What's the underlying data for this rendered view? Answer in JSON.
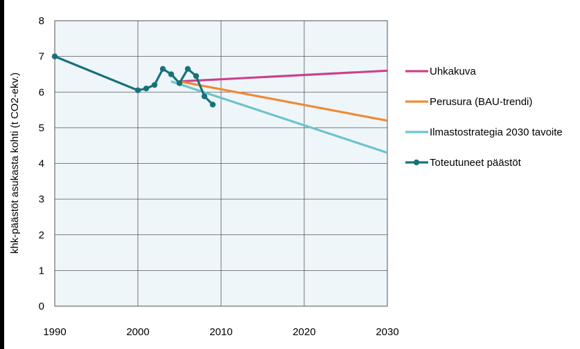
{
  "chart_data": {
    "type": "line",
    "ylabel": "khk-päästöt asukasta kohti (t CO2-ekv.)",
    "xlim": [
      1990,
      2030
    ],
    "ylim": [
      0,
      8
    ],
    "xticks": [
      "1990",
      "2000",
      "2010",
      "2020",
      "2030"
    ],
    "yticks": [
      "0",
      "1",
      "2",
      "3",
      "4",
      "5",
      "6",
      "7",
      "8"
    ],
    "grid": true,
    "legend_position": "right",
    "series": [
      {
        "name": "Uhkakuva",
        "color": "#cc3f8c",
        "markers": false,
        "x": [
          2005,
          2030
        ],
        "y": [
          6.3,
          6.6
        ]
      },
      {
        "name": "Perusura (BAU-trendi)",
        "color": "#f08a34",
        "markers": false,
        "x": [
          2005,
          2030
        ],
        "y": [
          6.3,
          5.2
        ]
      },
      {
        "name": "Ilmastostrategia 2030 tavoite",
        "color": "#6cc4c8",
        "markers": false,
        "x": [
          2004,
          2030
        ],
        "y": [
          6.3,
          4.3
        ]
      },
      {
        "name": "Toteutuneet päästöt",
        "color": "#17727a",
        "markers": true,
        "x": [
          1990,
          2000,
          2001,
          2002,
          2003,
          2004,
          2005,
          2006,
          2007,
          2008,
          2009
        ],
        "y": [
          7.0,
          6.05,
          6.1,
          6.2,
          6.65,
          6.5,
          6.25,
          6.65,
          6.45,
          5.88,
          5.65
        ]
      }
    ]
  }
}
